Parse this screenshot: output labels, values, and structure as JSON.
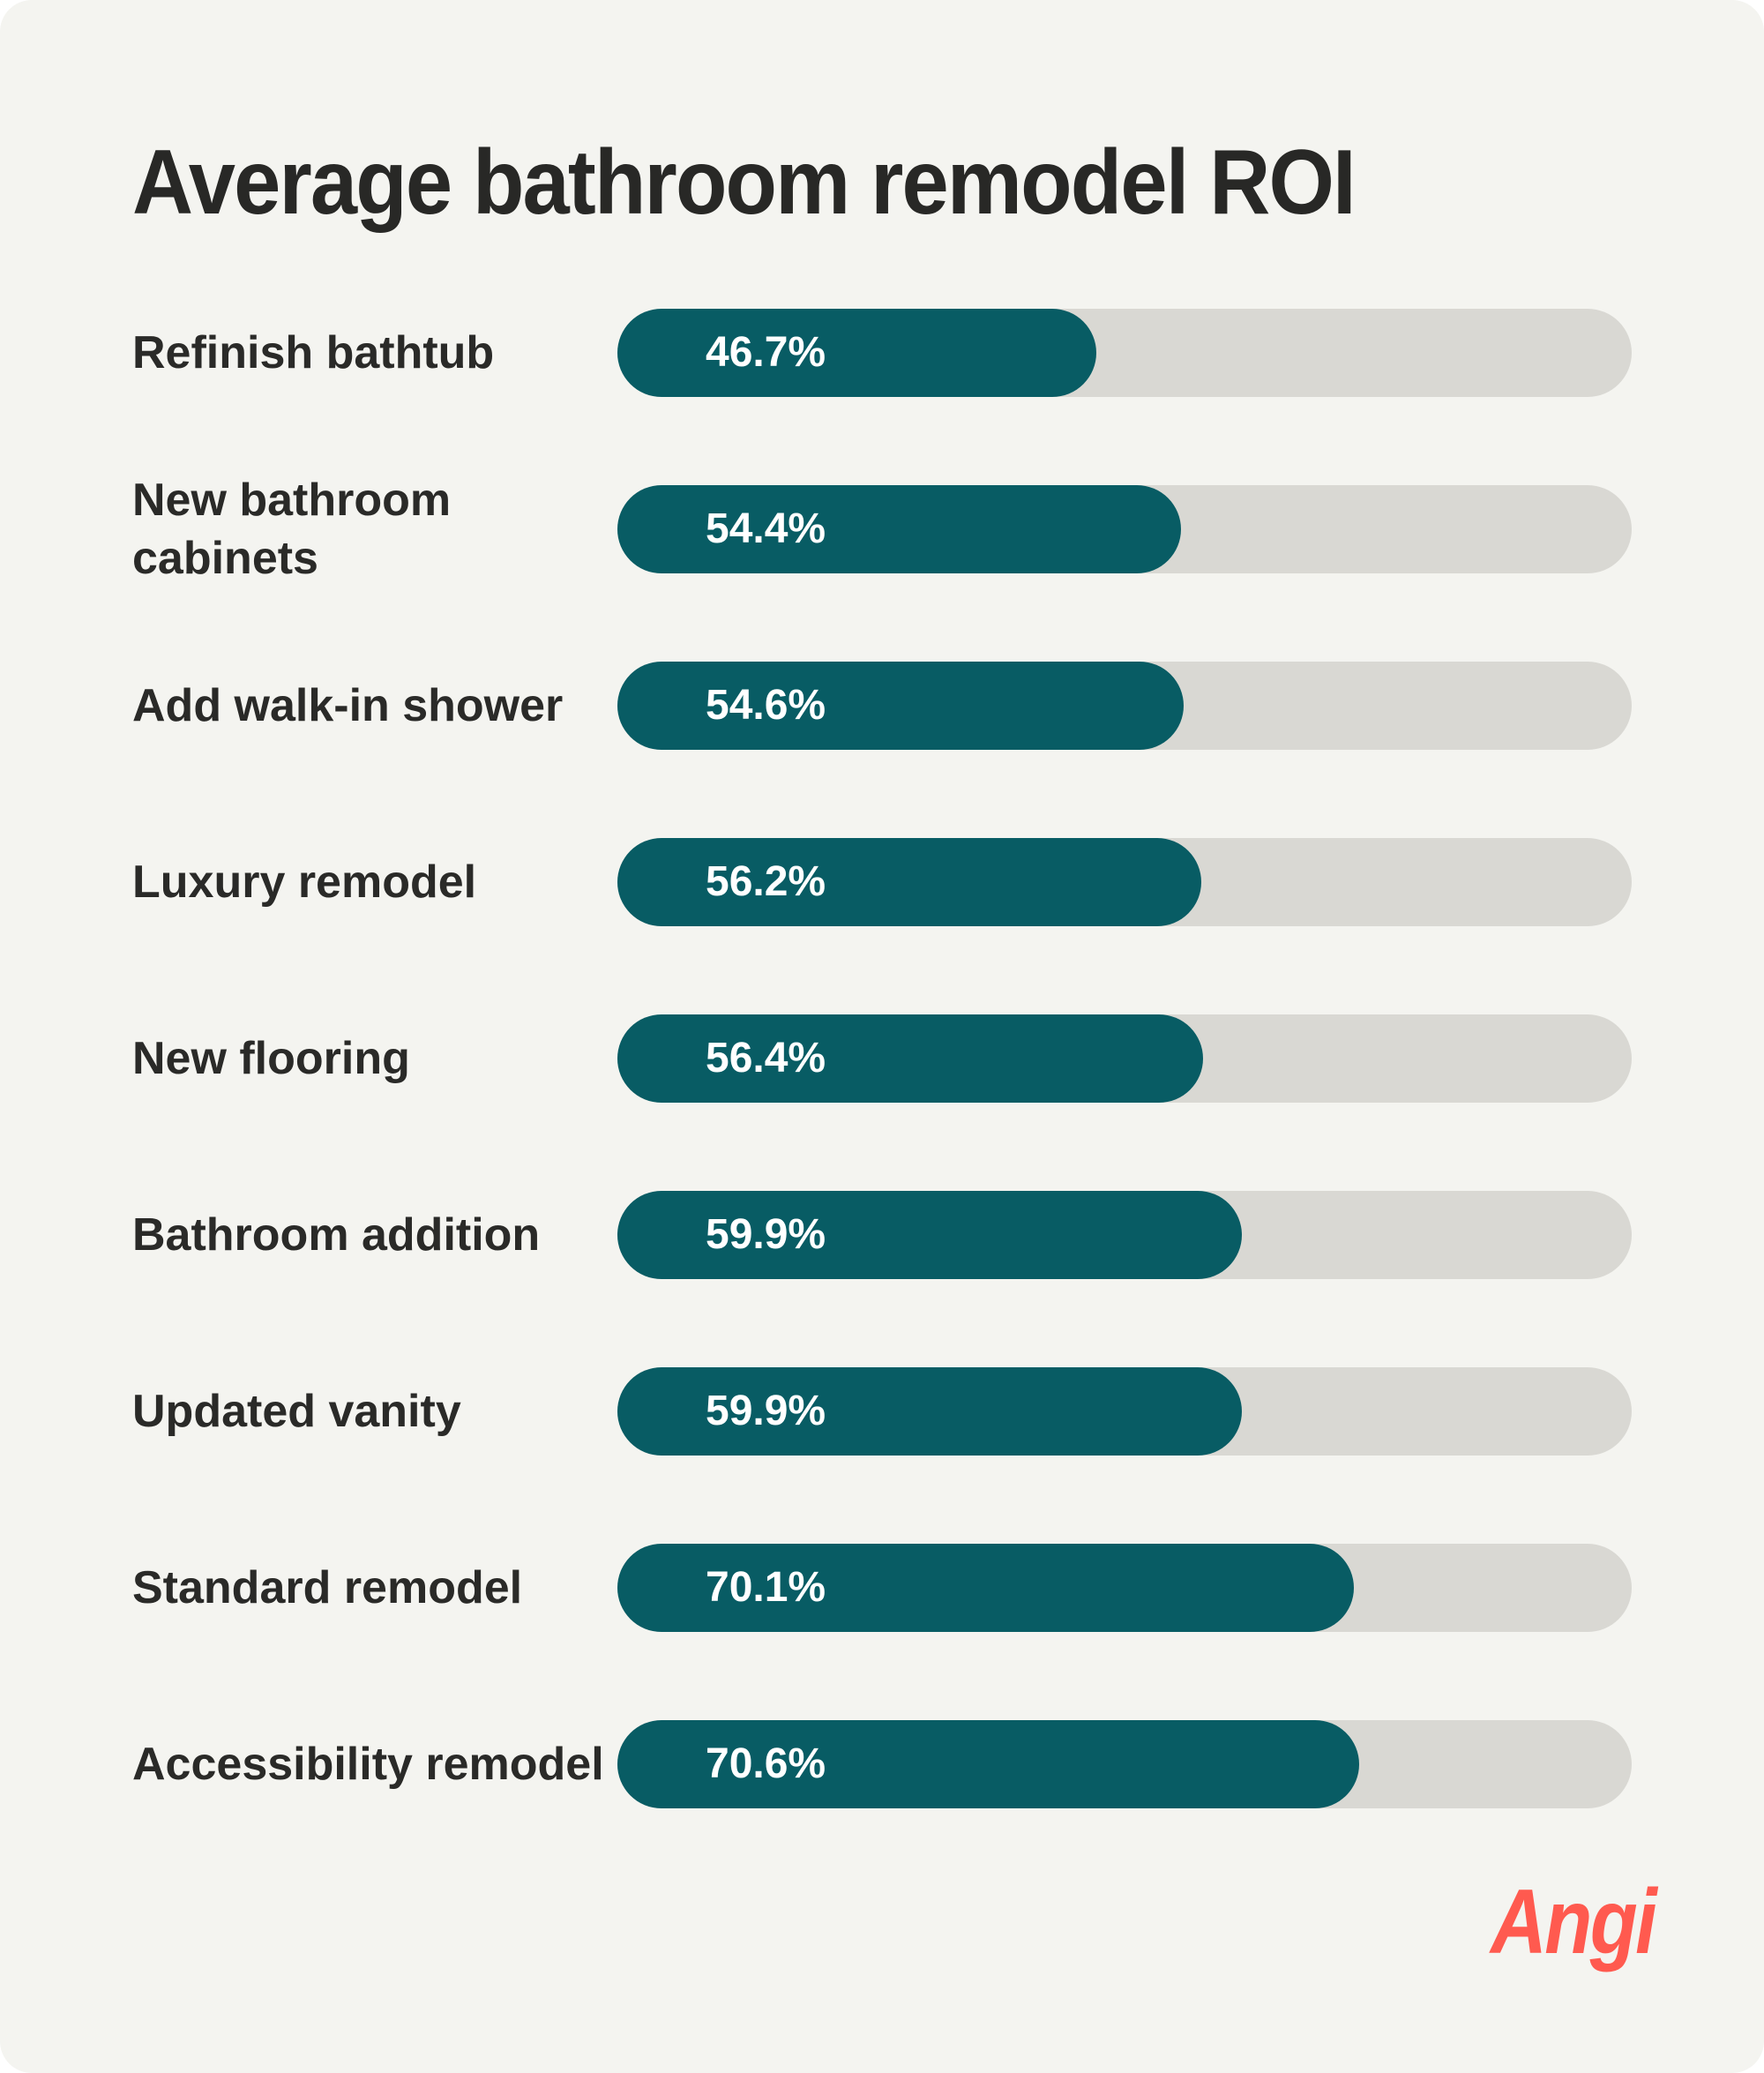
{
  "title": "Average bathroom remodel ROI",
  "colors": {
    "fill": "#085c64",
    "track": "#d9d8d3",
    "background": "#f4f4f0",
    "logo": "#ff5a4f"
  },
  "logo": {
    "text": "Angi"
  },
  "rows": [
    {
      "label": "Refinish bathtub",
      "value": 46.7,
      "display": "46.7%"
    },
    {
      "label": "New bathroom cabinets",
      "value": 54.4,
      "display": "54.4%"
    },
    {
      "label": "Add walk-in shower",
      "value": 54.6,
      "display": "54.6%"
    },
    {
      "label": "Luxury remodel",
      "value": 56.2,
      "display": "56.2%"
    },
    {
      "label": "New flooring",
      "value": 56.4,
      "display": "56.4%"
    },
    {
      "label": "Bathroom addition",
      "value": 59.9,
      "display": "59.9%"
    },
    {
      "label": "Updated vanity",
      "value": 59.9,
      "display": "59.9%"
    },
    {
      "label": "Standard remodel",
      "value": 70.1,
      "display": "70.1%"
    },
    {
      "label": "Accessibility remodel",
      "value": 70.6,
      "display": "70.6%"
    }
  ],
  "chart_data": {
    "type": "bar",
    "orientation": "horizontal",
    "title": "Average bathroom remodel ROI",
    "categories": [
      "Refinish bathtub",
      "New bathroom cabinets",
      "Add walk-in shower",
      "Luxury remodel",
      "New flooring",
      "Bathroom addition",
      "Updated vanity",
      "Standard remodel",
      "Accessibility remodel"
    ],
    "values": [
      46.7,
      54.4,
      54.6,
      56.2,
      56.4,
      59.9,
      59.9,
      70.1,
      70.6
    ],
    "unit": "%",
    "xlabel": "",
    "ylabel": "",
    "grid": false,
    "legend": null
  }
}
